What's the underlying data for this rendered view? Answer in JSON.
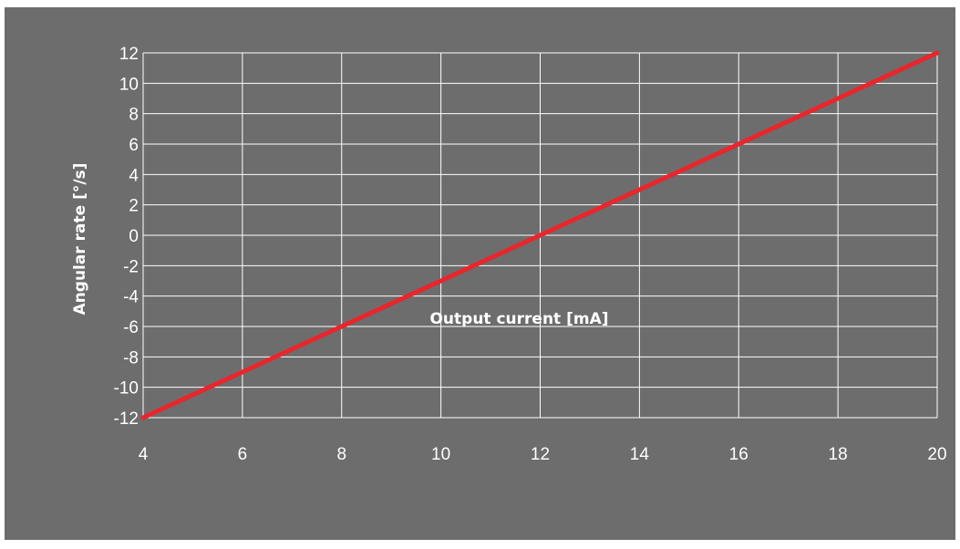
{
  "chart_data": {
    "type": "line",
    "title": "",
    "xlabel": "Output current [mA]",
    "ylabel": "Angular rate [°/s]",
    "xlim": [
      4,
      20
    ],
    "ylim": [
      -12,
      12
    ],
    "xticks": [
      4,
      6,
      8,
      10,
      12,
      14,
      16,
      18,
      20
    ],
    "yticks": [
      12,
      10,
      8,
      6,
      4,
      2,
      0,
      -2,
      -4,
      -6,
      -8,
      -10,
      -12
    ],
    "grid": true,
    "legend": "none",
    "series": [
      {
        "color": "#e8262b",
        "x": [
          4,
          20
        ],
        "y": [
          -12,
          12
        ]
      }
    ]
  },
  "colors": {
    "background": "#6d6d6e",
    "grid": "#ffffff",
    "line": "#e8262b",
    "text": "#ffffff"
  }
}
